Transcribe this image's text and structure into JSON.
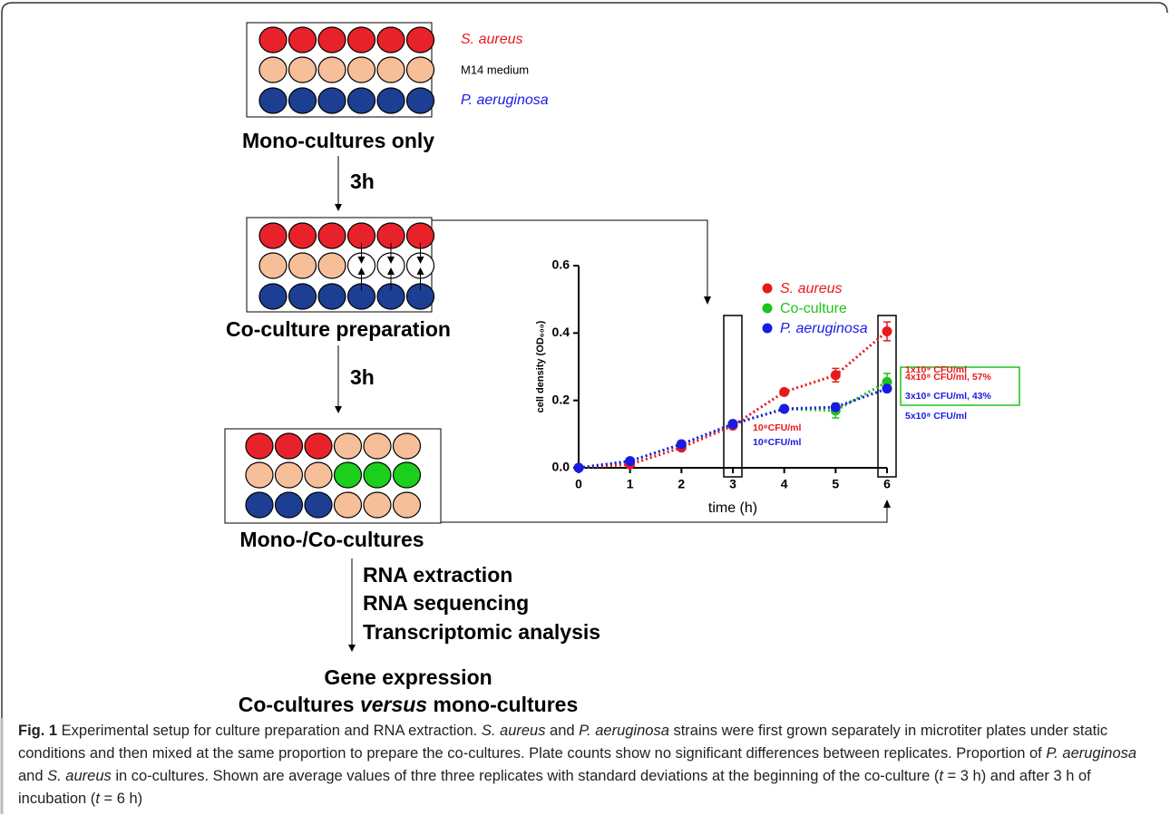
{
  "diagram": {
    "plate_labels": [
      "S. aureus",
      "M14 medium",
      "P. aeruginosa"
    ],
    "steps": [
      "Mono-cultures only",
      "3h",
      "Co-culture preparation",
      "3h",
      "Mono-/Co-cultures"
    ],
    "analysis": [
      "RNA extraction",
      "RNA sequencing",
      "Transcriptomic analysis"
    ],
    "result_title": "Gene expression",
    "result_subtitle": [
      "Co-cultures ",
      "versus",
      " mono-cultures"
    ]
  },
  "chart_data": {
    "type": "line",
    "x": [
      0,
      1,
      2,
      3,
      4,
      5,
      6
    ],
    "xlim": [
      0,
      6
    ],
    "xticks": [
      0,
      1,
      2,
      3,
      4,
      5,
      6
    ],
    "ylim": [
      0,
      0.6
    ],
    "yticks": [
      {
        "value": 0,
        "label": "0.0"
      },
      0.2,
      0.4,
      0.6
    ],
    "x_label": "time (h)",
    "y_label": "cell density (OD₆₀₀)",
    "series": [
      {
        "name": "S. aureus",
        "color": "#e8191c",
        "values": [
          0,
          0.01,
          0.06,
          0.125,
          0.225,
          0.275,
          0.405
        ],
        "errors": [
          0,
          0,
          0.005,
          0,
          0.005,
          0.02,
          0.028
        ]
      },
      {
        "name": "Co-culture",
        "color": "#1dc31d",
        "values": [
          0,
          0.02,
          0.07,
          0.13,
          0.175,
          0.17,
          0.255
        ],
        "errors": [
          0,
          0,
          0,
          0,
          0.005,
          0.022,
          0.025
        ]
      },
      {
        "name": "P. aeruginosa",
        "color": "#1a1ae6",
        "values": [
          0,
          0.02,
          0.07,
          0.13,
          0.175,
          0.18,
          0.235
        ],
        "errors": [
          0,
          0,
          0,
          0,
          0,
          0,
          0
        ]
      }
    ],
    "annotations": [
      "1x10⁹ CFU/ml",
      "4x10⁸ CFU/ml, 57%",
      "3x10⁸ CFU/ml, 43%",
      "5x10⁸ CFU/ml",
      "10⁸CFU/ml",
      "10⁸CFU/ml"
    ]
  },
  "caption": [
    "Fig. 1",
    " Experimental setup for culture preparation and RNA extraction. ",
    "S. aureus",
    " and ",
    "P. aeruginosa",
    " strains were first grown separately in microtiter plates under static conditions and then mixed at the same proportion to prepare the co-cultures. Plate counts show no significant differences between replicates. Proportion of ",
    "P. aeruginosa",
    " and ",
    "S. aureus",
    " in co-cultures. Shown are average values of thre three replicates with standard deviations at the beginning of the co-culture (",
    "t",
    " = 3 h) and after 3 h of incubation (",
    "t",
    " = 6 h)"
  ]
}
